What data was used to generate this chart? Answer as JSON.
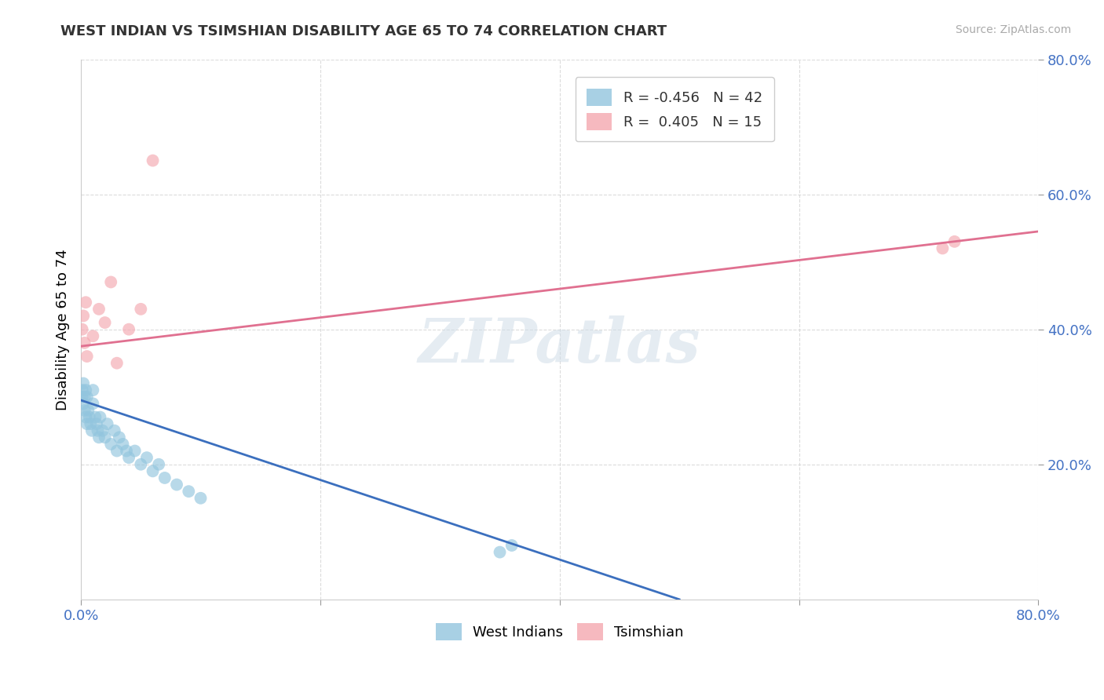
{
  "title": "WEST INDIAN VS TSIMSHIAN DISABILITY AGE 65 TO 74 CORRELATION CHART",
  "source": "Source: ZipAtlas.com",
  "ylabel": "Disability Age 65 to 74",
  "xlim": [
    0,
    0.8
  ],
  "ylim": [
    0,
    0.8
  ],
  "xticks": [
    0.0,
    0.2,
    0.4,
    0.6,
    0.8
  ],
  "yticks": [
    0.2,
    0.4,
    0.6,
    0.8
  ],
  "west_indian_color": "#92c5de",
  "tsimshian_color": "#f4a8b0",
  "west_indian_line_color": "#3b6fbe",
  "tsimshian_line_color": "#e07090",
  "legend_R_west_indian": "-0.456",
  "legend_N_west_indian": "42",
  "legend_R_tsimshian": "0.405",
  "legend_N_tsimshian": "15",
  "watermark_text": "ZIPatlas",
  "background_color": "#ffffff",
  "grid_color": "#cccccc",
  "title_color": "#333333",
  "source_color": "#aaaaaa",
  "tick_color": "#4472c4",
  "west_indian_x": [
    0.001,
    0.001,
    0.002,
    0.002,
    0.003,
    0.003,
    0.004,
    0.004,
    0.005,
    0.005,
    0.006,
    0.007,
    0.008,
    0.009,
    0.01,
    0.01,
    0.012,
    0.013,
    0.014,
    0.015,
    0.016,
    0.018,
    0.02,
    0.022,
    0.025,
    0.028,
    0.03,
    0.032,
    0.035,
    0.038,
    0.04,
    0.045,
    0.05,
    0.055,
    0.06,
    0.065,
    0.07,
    0.08,
    0.09,
    0.1,
    0.35,
    0.36
  ],
  "west_indian_y": [
    0.3,
    0.31,
    0.29,
    0.32,
    0.28,
    0.3,
    0.27,
    0.31,
    0.26,
    0.3,
    0.28,
    0.27,
    0.26,
    0.25,
    0.29,
    0.31,
    0.27,
    0.26,
    0.25,
    0.24,
    0.27,
    0.25,
    0.24,
    0.26,
    0.23,
    0.25,
    0.22,
    0.24,
    0.23,
    0.22,
    0.21,
    0.22,
    0.2,
    0.21,
    0.19,
    0.2,
    0.18,
    0.17,
    0.16,
    0.15,
    0.07,
    0.08
  ],
  "tsimshian_x": [
    0.001,
    0.002,
    0.003,
    0.004,
    0.005,
    0.01,
    0.015,
    0.02,
    0.025,
    0.03,
    0.04,
    0.05,
    0.06,
    0.72,
    0.73
  ],
  "tsimshian_y": [
    0.4,
    0.42,
    0.38,
    0.44,
    0.36,
    0.39,
    0.43,
    0.41,
    0.47,
    0.35,
    0.4,
    0.43,
    0.65,
    0.52,
    0.53
  ],
  "wi_line_x": [
    0.0,
    0.5
  ],
  "wi_line_y": [
    0.295,
    0.0
  ],
  "ts_line_x": [
    0.0,
    0.8
  ],
  "ts_line_y": [
    0.375,
    0.545
  ]
}
